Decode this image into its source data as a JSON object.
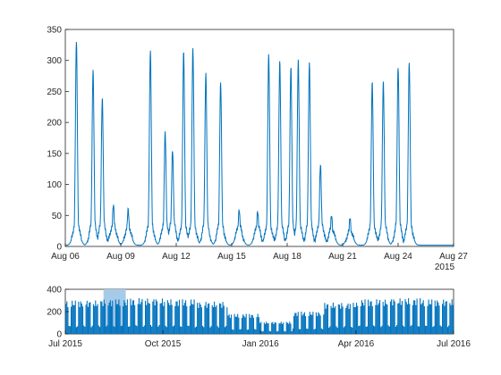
{
  "chart_data": [
    {
      "type": "line",
      "panel": "main",
      "x_range": [
        "2015-08-06",
        "2015-08-27"
      ],
      "ylim": [
        0,
        350
      ],
      "y_ticks": [
        0,
        50,
        100,
        150,
        200,
        250,
        300,
        350
      ],
      "x_tick_labels": [
        "Aug 06",
        "Aug 09",
        "Aug 12",
        "Aug 15",
        "Aug 18",
        "Aug 21",
        "Aug 24",
        "Aug 27"
      ],
      "x_secondary_label": "2015",
      "grid": false,
      "color": "#0072bd",
      "series": [
        {
          "daily_peaks": [
            331,
            285,
            240,
            65,
            58,
            315,
            182,
            157,
            313,
            318,
            280,
            265,
            60,
            58,
            307,
            298,
            290,
            298,
            297,
            130,
            50,
            45,
            263,
            265,
            292,
            296
          ],
          "daily_peak_days": [
            0.6,
            1.5,
            2.0,
            2.6,
            3.4,
            4.6,
            5.4,
            5.8,
            6.4,
            6.9,
            7.6,
            8.4,
            9.4,
            10.4,
            11.0,
            11.6,
            12.2,
            12.6,
            13.2,
            13.8,
            14.4,
            15.4,
            16.6,
            17.2,
            18.0,
            18.6
          ],
          "night_minimum": 2
        }
      ]
    },
    {
      "type": "area",
      "panel": "overview",
      "x_range": [
        "2015-07-01",
        "2016-07-01"
      ],
      "ylim": [
        0,
        400
      ],
      "y_ticks": [
        0,
        200,
        400
      ],
      "x_tick_labels": [
        "Jul 2015",
        "Oct 2015",
        "Jan 2016",
        "Apr 2016",
        "Jul 2016"
      ],
      "selection": [
        "2015-08-06",
        "2015-08-27"
      ],
      "selection_color": "#a6cbe8",
      "color": "#0072bd",
      "typical_daily_peak": [
        {
          "month": "Jul",
          "value": 300
        },
        {
          "month": "Aug",
          "value": 310
        },
        {
          "month": "Sep",
          "value": 320
        },
        {
          "month": "Oct",
          "value": 310
        },
        {
          "month": "Nov",
          "value": 290
        },
        {
          "month": "Dec",
          "value": 180
        },
        {
          "month": "Jan",
          "value": 110
        },
        {
          "month": "Feb",
          "value": 200
        },
        {
          "month": "Mar",
          "value": 280
        },
        {
          "month": "Apr",
          "value": 310
        },
        {
          "month": "May",
          "value": 320
        },
        {
          "month": "Jun",
          "value": 310
        }
      ]
    }
  ]
}
